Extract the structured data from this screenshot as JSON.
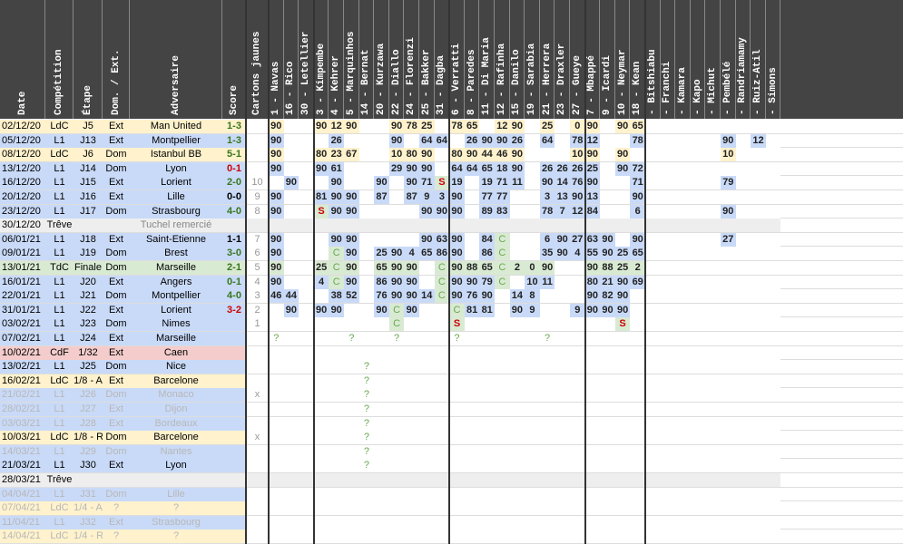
{
  "columns": {
    "info": [
      "Date",
      "Compétition",
      "Étape",
      "Dom. / Ext.",
      "Adversaire",
      "Score",
      "Cartons jaunes"
    ],
    "players": [
      "1 - Navas",
      "16 - Rico",
      "30 - Letellier",
      "3 - Kimpembe",
      "4 - Kehrer",
      "5 - Marquinhos",
      "14 - Bernat",
      "20 - Kurzawa",
      "22 - Diallo",
      "24 - Florenzi",
      "25 - Bakker",
      "31 - Dagba",
      "6 - Verratti",
      "8 - Paredes",
      "11 - Di Maria",
      "12 - Rafinha",
      "15 - Danilo",
      "19 - Sarabia",
      "21 - Herrera",
      "23 - Draxler",
      "27 - Gueye",
      "7 - Mbappé",
      "9 - Icardi",
      "10 - Neymar",
      "18 - Kean",
      "- Bitshiabu",
      "- Franchi",
      "- Kamara",
      "- Kapo",
      "- Michut",
      "- Pembélé",
      "- Randriamamy",
      "- Ruiz-Atil",
      "- Simons"
    ]
  },
  "matches": [
    {
      "date": "02/12/20",
      "comp": "LdC",
      "stage": "J5",
      "ha": "Ext",
      "opp": "Man United",
      "score": "1-3",
      "res": "W",
      "type": "ldc",
      "cj": "",
      "p": {
        "0": "90",
        "3": "90",
        "4": "12",
        "5": "90",
        "8": "90",
        "9": "78",
        "10": "25",
        "12": "78",
        "13": "65",
        "15": "12",
        "16": "90",
        "18": "25",
        "20": "0",
        "21": "90",
        "23": "90",
        "24": "65"
      }
    },
    {
      "date": "05/12/20",
      "comp": "L1",
      "stage": "J13",
      "ha": "Ext",
      "opp": "Montpellier",
      "score": "1-3",
      "res": "W",
      "type": "l1",
      "cj": "",
      "p": {
        "0": "90",
        "4": "26",
        "8": "90",
        "10": "64",
        "11": "64",
        "13": "26",
        "14": "90",
        "15": "90",
        "16": "26",
        "18": "64",
        "20": "78",
        "21": "12",
        "24": "78",
        "30": "90",
        "32": "12"
      }
    },
    {
      "date": "08/12/20",
      "comp": "LdC",
      "stage": "J6",
      "ha": "Dom",
      "opp": "Istanbul BB",
      "score": "5-1",
      "res": "W",
      "type": "ldc",
      "cj": "",
      "p": {
        "0": "90",
        "3": "80",
        "4": "23",
        "5": "67",
        "8": "10",
        "9": "80",
        "10": "90",
        "12": "80",
        "13": "90",
        "14": "44",
        "15": "46",
        "16": "90",
        "20": "10",
        "21": "90",
        "23": "90",
        "30": "10"
      }
    },
    {
      "date": "13/12/20",
      "comp": "L1",
      "stage": "J14",
      "ha": "Dom",
      "opp": "Lyon",
      "score": "0-1",
      "res": "L",
      "type": "l1",
      "cj": "",
      "p": {
        "0": "90",
        "3": "90",
        "4": "61",
        "8": "29",
        "9": "90",
        "10": "90",
        "12": "64",
        "13": "64",
        "14": "65",
        "15": "18",
        "16": "90",
        "18": "26",
        "19": "26",
        "20": "26",
        "21": "25",
        "23": "90",
        "24": "72"
      }
    },
    {
      "date": "16/12/20",
      "comp": "L1",
      "stage": "J15",
      "ha": "Ext",
      "opp": "Lorient",
      "score": "2-0",
      "res": "W",
      "type": "l1",
      "cj": "10",
      "p": {
        "1": "90",
        "4": "90",
        "7": "90",
        "9": "90",
        "10": "71",
        "11": "S",
        "12": "19",
        "14": "19",
        "15": "71",
        "16": "11",
        "18": "90",
        "19": "14",
        "20": "76",
        "21": "90",
        "24": "71",
        "30": "79"
      }
    },
    {
      "date": "20/12/20",
      "comp": "L1",
      "stage": "J16",
      "ha": "Ext",
      "opp": "Lille",
      "score": "0-0",
      "res": "D",
      "type": "l1",
      "cj": "9",
      "p": {
        "0": "90",
        "3": "81",
        "4": "90",
        "5": "90",
        "7": "87",
        "9": "87",
        "10": "9",
        "11": "3",
        "12": "90",
        "14": "77",
        "15": "77",
        "18": "3",
        "19": "13",
        "20": "90",
        "21": "13",
        "24": "90"
      }
    },
    {
      "date": "23/12/20",
      "comp": "L1",
      "stage": "J17",
      "ha": "Dom",
      "opp": "Strasbourg",
      "score": "4-0",
      "res": "W",
      "type": "l1",
      "cj": "8",
      "p": {
        "0": "90",
        "3": "S",
        "4": "90",
        "5": "90",
        "10": "90",
        "11": "90",
        "12": "90",
        "14": "89",
        "15": "83",
        "18": "78",
        "19": "7",
        "20": "12",
        "21": "84",
        "24": "6",
        "30": "90"
      }
    },
    {
      "date": "30/12/20",
      "comp": "Trêve",
      "stage": "",
      "ha": "",
      "opp": "Tuchel remercié",
      "score": "",
      "res": "",
      "type": "treve",
      "cj": "",
      "p": {}
    },
    {
      "date": "06/01/21",
      "comp": "L1",
      "stage": "J18",
      "ha": "Ext",
      "opp": "Saint-Etienne",
      "score": "1-1",
      "res": "D",
      "type": "l1",
      "cj": "7",
      "p": {
        "0": "90",
        "4": "90",
        "5": "90",
        "10": "90",
        "11": "63",
        "12": "90",
        "14": "84",
        "15": "C",
        "18": "6",
        "19": "90",
        "20": "27",
        "21": "63",
        "22": "90",
        "24": "90",
        "30": "27"
      }
    },
    {
      "date": "09/01/21",
      "comp": "L1",
      "stage": "J19",
      "ha": "Dom",
      "opp": "Brest",
      "score": "3-0",
      "res": "W",
      "type": "l1",
      "cj": "6",
      "p": {
        "0": "90",
        "4": "C",
        "5": "90",
        "7": "25",
        "8": "90",
        "9": "4",
        "10": "65",
        "11": "86",
        "12": "90",
        "14": "86",
        "15": "C",
        "18": "35",
        "19": "90",
        "20": "4",
        "21": "55",
        "22": "90",
        "23": "25",
        "24": "65"
      }
    },
    {
      "date": "13/01/21",
      "comp": "TdC",
      "stage": "Finale",
      "ha": "Dom",
      "opp": "Marseille",
      "score": "2-1",
      "res": "W",
      "type": "tdc",
      "cj": "5",
      "p": {
        "0": "90",
        "3": "25",
        "4": "C",
        "5": "90",
        "7": "65",
        "8": "90",
        "9": "90",
        "11": "C",
        "12": "90",
        "13": "88",
        "14": "65",
        "15": "C",
        "16": "2",
        "17": "0",
        "18": "90",
        "21": "90",
        "22": "88",
        "23": "25",
        "24": "2"
      }
    },
    {
      "date": "16/01/21",
      "comp": "L1",
      "stage": "J20",
      "ha": "Ext",
      "opp": "Angers",
      "score": "0-1",
      "res": "W",
      "type": "l1",
      "cj": "4",
      "p": {
        "0": "90",
        "3": "4",
        "4": "C",
        "5": "90",
        "7": "86",
        "8": "90",
        "9": "90",
        "11": "C",
        "12": "90",
        "13": "90",
        "14": "79",
        "15": "C",
        "17": "10",
        "18": "11",
        "21": "80",
        "22": "21",
        "23": "90",
        "24": "69"
      }
    },
    {
      "date": "22/01/21",
      "comp": "L1",
      "stage": "J21",
      "ha": "Dom",
      "opp": "Montpellier",
      "score": "4-0",
      "res": "W",
      "type": "l1",
      "cj": "3",
      "p": {
        "0": "46",
        "1": "44",
        "4": "38",
        "5": "52",
        "7": "76",
        "8": "90",
        "9": "90",
        "10": "14",
        "11": "C",
        "12": "90",
        "13": "76",
        "14": "90",
        "16": "14",
        "17": "8",
        "21": "90",
        "22": "82",
        "23": "90"
      }
    },
    {
      "date": "31/01/21",
      "comp": "L1",
      "stage": "J22",
      "ha": "Ext",
      "opp": "Lorient",
      "score": "3-2",
      "res": "L",
      "type": "l1",
      "cj": "2",
      "p": {
        "1": "90",
        "3": "90",
        "4": "90",
        "7": "90",
        "8": "C",
        "9": "90",
        "12": "C",
        "13": "81",
        "14": "81",
        "16": "90",
        "17": "9",
        "20": "9",
        "21": "90",
        "22": "90",
        "23": "90"
      }
    },
    {
      "date": "03/02/21",
      "comp": "L1",
      "stage": "J23",
      "ha": "Dom",
      "opp": "Nimes",
      "score": "",
      "res": "",
      "type": "l1",
      "cj": "1",
      "p": {
        "8": "C",
        "12": "S",
        "23": "S"
      }
    },
    {
      "date": "07/02/21",
      "comp": "L1",
      "stage": "J24",
      "ha": "Ext",
      "opp": "Marseille",
      "score": "",
      "res": "",
      "type": "l1",
      "cj": "",
      "p": {
        "0": "?",
        "5": "?",
        "8": "?",
        "12": "?",
        "18": "?"
      }
    },
    {
      "date": "10/02/21",
      "comp": "CdF",
      "stage": "1/32",
      "ha": "Ext",
      "opp": "Caen",
      "score": "",
      "res": "",
      "type": "cdf",
      "cj": "",
      "p": {}
    },
    {
      "date": "13/02/21",
      "comp": "L1",
      "stage": "J25",
      "ha": "Dom",
      "opp": "Nice",
      "score": "",
      "res": "",
      "type": "l1",
      "cj": "",
      "p": {
        "6": "?"
      }
    },
    {
      "date": "16/02/21",
      "comp": "LdC",
      "stage": "1/8 - A",
      "ha": "Ext",
      "opp": "Barcelone",
      "score": "",
      "res": "",
      "type": "ldc",
      "cj": "",
      "p": {
        "6": "?"
      }
    },
    {
      "date": "21/02/21",
      "comp": "L1",
      "stage": "J26",
      "ha": "Dom",
      "opp": "Monaco",
      "score": "",
      "res": "",
      "type": "l1g",
      "cj": "x",
      "p": {
        "6": "?"
      }
    },
    {
      "date": "28/02/21",
      "comp": "L1",
      "stage": "J27",
      "ha": "Ext",
      "opp": "Dijon",
      "score": "",
      "res": "",
      "type": "l1g",
      "cj": "",
      "p": {
        "6": "?"
      }
    },
    {
      "date": "03/03/21",
      "comp": "L1",
      "stage": "J28",
      "ha": "Ext",
      "opp": "Bordeaux",
      "score": "",
      "res": "",
      "type": "l1g",
      "cj": "",
      "p": {
        "6": "?"
      }
    },
    {
      "date": "10/03/21",
      "comp": "LdC",
      "stage": "1/8 - R",
      "ha": "Dom",
      "opp": "Barcelone",
      "score": "",
      "res": "",
      "type": "ldc",
      "cj": "x",
      "p": {
        "6": "?"
      }
    },
    {
      "date": "14/03/21",
      "comp": "L1",
      "stage": "J29",
      "ha": "Dom",
      "opp": "Nantes",
      "score": "",
      "res": "",
      "type": "l1g",
      "cj": "",
      "p": {
        "6": "?"
      }
    },
    {
      "date": "21/03/21",
      "comp": "L1",
      "stage": "J30",
      "ha": "Ext",
      "opp": "Lyon",
      "score": "",
      "res": "",
      "type": "l1",
      "cj": "",
      "p": {
        "6": "?"
      }
    },
    {
      "date": "28/03/21",
      "comp": "Trêve",
      "stage": "",
      "ha": "",
      "opp": "",
      "score": "",
      "res": "",
      "type": "treve",
      "cj": "",
      "p": {}
    },
    {
      "date": "04/04/21",
      "comp": "L1",
      "stage": "J31",
      "ha": "Dom",
      "opp": "Lille",
      "score": "",
      "res": "",
      "type": "l1g",
      "cj": "",
      "p": {}
    },
    {
      "date": "07/04/21",
      "comp": "LdC",
      "stage": "1/4 - A",
      "ha": "?",
      "opp": "?",
      "score": "",
      "res": "",
      "type": "ldcg",
      "cj": "",
      "p": {}
    },
    {
      "date": "11/04/21",
      "comp": "L1",
      "stage": "J32",
      "ha": "Ext",
      "opp": "Strasbourg",
      "score": "",
      "res": "",
      "type": "l1g",
      "cj": "",
      "p": {}
    },
    {
      "date": "14/04/21",
      "comp": "LdC",
      "stage": "1/4 - R",
      "ha": "?",
      "opp": "?",
      "score": "",
      "res": "",
      "type": "ldcg",
      "cj": "",
      "p": {}
    }
  ],
  "colors": {
    "ldc": "#fff2cc",
    "l1": "#c9daf8",
    "tdc": "#d9ead3",
    "cdf": "#f4cccc",
    "treve": "#eeeeee",
    "header": "#444444",
    "win": "#38761d",
    "loss": "#cc0000",
    "draw": "#000000",
    "ghost": "#b7b7b7",
    "sub": "#6aa84f",
    "yellow": "#ffe599"
  }
}
